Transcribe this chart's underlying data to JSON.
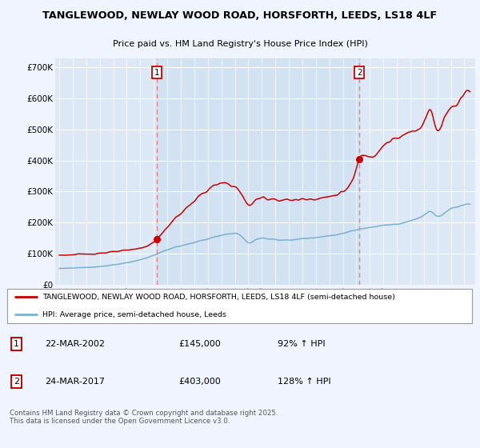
{
  "title_line1": "TANGLEWOOD, NEWLAY WOOD ROAD, HORSFORTH, LEEDS, LS18 4LF",
  "title_line2": "Price paid vs. HM Land Registry's House Price Index (HPI)",
  "background_color": "#f0f4ff",
  "plot_bg_color": "#dce8f5",
  "highlight_bg_color": "#e8f0fa",
  "grid_color": "#ffffff",
  "sale1_date_x": 2002.22,
  "sale1_price": 145000,
  "sale2_date_x": 2017.22,
  "sale2_price": 403000,
  "ylim_min": 0,
  "ylim_max": 730000,
  "xlim_min": 1994.7,
  "xlim_max": 2025.8,
  "legend_label_red": "TANGLEWOOD, NEWLAY WOOD ROAD, HORSFORTH, LEEDS, LS18 4LF (semi-detached house)",
  "legend_label_blue": "HPI: Average price, semi-detached house, Leeds",
  "annotation1_label": "1",
  "annotation1_date": "22-MAR-2002",
  "annotation1_price": "£145,000",
  "annotation1_hpi": "92% ↑ HPI",
  "annotation2_label": "2",
  "annotation2_date": "24-MAR-2017",
  "annotation2_price": "£403,000",
  "annotation2_hpi": "128% ↑ HPI",
  "copyright_text": "Contains HM Land Registry data © Crown copyright and database right 2025.\nThis data is licensed under the Open Government Licence v3.0.",
  "red_color": "#cc0000",
  "blue_color": "#7ab0d4",
  "vline_color": "#e88080"
}
